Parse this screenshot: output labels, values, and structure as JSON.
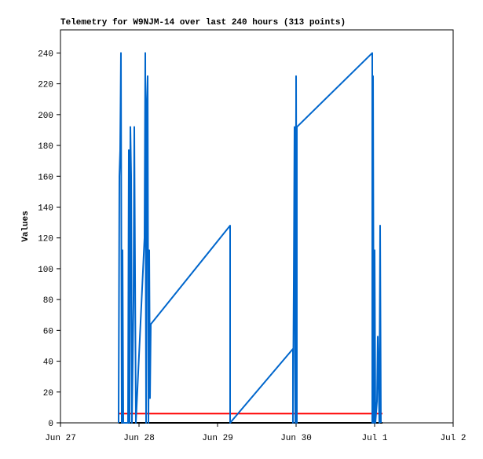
{
  "chart_data": {
    "type": "line",
    "title": "Telemetry for W9NJM-14 over last 240 hours (313 points)",
    "y_label": "Values",
    "xlim": [
      0,
      5
    ],
    "xticks": [
      {
        "value": 0,
        "label": "Jun 27"
      },
      {
        "value": 1,
        "label": "Jun 28"
      },
      {
        "value": 2,
        "label": "Jun 29"
      },
      {
        "value": 3,
        "label": "Jun 30"
      },
      {
        "value": 4,
        "label": "Jul 1"
      },
      {
        "value": 5,
        "label": "Jul 2"
      }
    ],
    "ylim": [
      0,
      255
    ],
    "yticks": [
      0,
      20,
      40,
      60,
      80,
      100,
      120,
      140,
      160,
      180,
      200,
      220,
      240
    ],
    "grid": false,
    "series": [
      {
        "color": "#000000",
        "x": [
          0.74,
          4.1
        ],
        "values": [
          0,
          0
        ]
      },
      {
        "color": "#ff0000",
        "x": [
          0.74,
          4.1
        ],
        "values": [
          6,
          6
        ]
      },
      {
        "color": "#0066cc",
        "x": [
          0.74,
          0.75,
          0.76,
          0.77,
          0.78,
          0.78,
          0.79,
          0.8,
          0.86,
          0.87,
          0.88,
          0.89,
          0.9,
          0.91,
          0.93,
          0.94,
          0.96,
          1.07,
          1.08,
          1.09,
          1.1,
          1.11,
          1.12,
          1.13,
          1.14,
          1.15,
          2.16,
          2.16,
          2.96,
          2.96,
          2.97,
          2.98,
          2.99,
          3.0,
          3.0,
          3.01,
          3.01,
          3.97,
          3.97,
          3.98,
          3.99,
          4.0,
          4.01,
          4.03,
          4.04,
          4.06,
          4.07,
          4.08
        ],
        "values": [
          0,
          160,
          177,
          240,
          0,
          32,
          112,
          0,
          0,
          177,
          0,
          192,
          160,
          0,
          80,
          192,
          0,
          120,
          240,
          0,
          208,
          225,
          0,
          112,
          16,
          64,
          128,
          0,
          48,
          0,
          88,
          192,
          0,
          208,
          225,
          0,
          192,
          240,
          0,
          225,
          0,
          112,
          0,
          14,
          56,
          0,
          128,
          0
        ]
      }
    ]
  }
}
